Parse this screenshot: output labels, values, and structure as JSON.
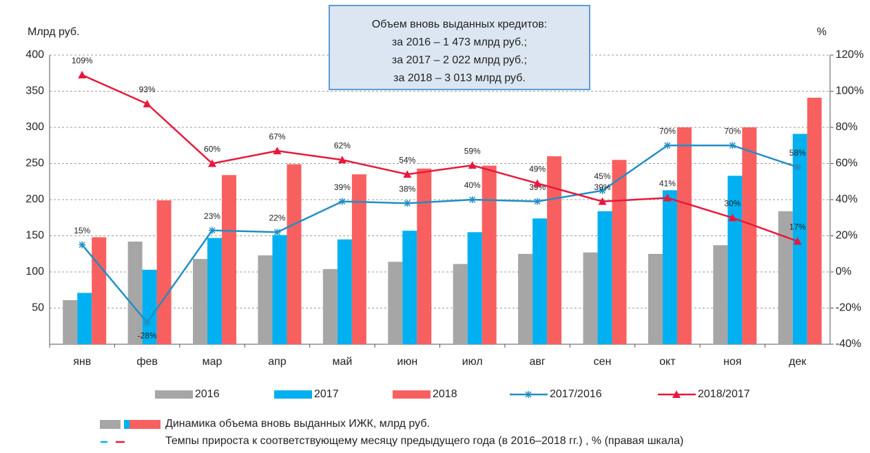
{
  "chart_data": {
    "type": "bar",
    "y_label": "Млрд руб.",
    "y2_label": "%",
    "annotation": [
      "Объем вновь выданных кредитов:",
      "за 2016 – 1 473 млрд руб.;",
      "за 2017 – 2 022 млрд руб.;",
      "за 2018 – 3 013 млрд руб."
    ],
    "categories": [
      "янв",
      "фев",
      "мар",
      "апр",
      "май",
      "июн",
      "июл",
      "авг",
      "сен",
      "окт",
      "ноя",
      "дек"
    ],
    "series": [
      {
        "name": "2016",
        "color": "#a6a6a6",
        "type": "bar",
        "values": [
          61,
          142,
          118,
          123,
          104,
          114,
          111,
          125,
          127,
          125,
          137,
          184
        ]
      },
      {
        "name": "2017",
        "color": "#00b0f0",
        "type": "bar",
        "values": [
          71,
          103,
          147,
          151,
          145,
          157,
          155,
          174,
          184,
          213,
          233,
          291
        ]
      },
      {
        "name": "2018",
        "color": "#f8605f",
        "type": "bar",
        "values": [
          148,
          199,
          234,
          249,
          235,
          243,
          247,
          260,
          255,
          300,
          300,
          341
        ]
      },
      {
        "name": "2017/2016",
        "color": "#1f8ec4",
        "type": "line",
        "marker": "star",
        "axis": "y2",
        "values": [
          15,
          -28,
          23,
          22,
          39,
          38,
          40,
          39,
          45,
          70,
          70,
          58
        ],
        "value_labels": [
          "15%",
          "-28%",
          "23%",
          "22%",
          "39%",
          "38%",
          "40%",
          "39%",
          "45%",
          "70%",
          "70%",
          "58%"
        ]
      },
      {
        "name": "2018/2017",
        "color": "#e8183c",
        "type": "line",
        "marker": "triangle",
        "axis": "y2",
        "values": [
          109,
          93,
          60,
          67,
          62,
          54,
          59,
          49,
          39,
          41,
          30,
          17
        ],
        "value_labels": [
          "109%",
          "93%",
          "60%",
          "67%",
          "62%",
          "54%",
          "59%",
          "49%",
          "39%",
          "41%",
          "30%",
          "17%"
        ]
      }
    ],
    "ylim": [
      0,
      400
    ],
    "yticks": [
      50,
      100,
      150,
      200,
      250,
      300,
      350,
      400
    ],
    "y2lim": [
      -40,
      120
    ],
    "y2ticks": [
      {
        "value": -40,
        "label": "-40%"
      },
      {
        "value": -20,
        "label": "-20%"
      },
      {
        "value": 0,
        "label": "0%"
      },
      {
        "value": 20,
        "label": "20%"
      },
      {
        "value": 40,
        "label": "40%"
      },
      {
        "value": 60,
        "label": "60%"
      },
      {
        "value": 80,
        "label": "80%"
      },
      {
        "value": 100,
        "label": "100%"
      },
      {
        "value": 120,
        "label": "120%"
      }
    ],
    "grid": true,
    "notes": [
      "Динамика объема вновь выданных ИЖК, млрд руб.",
      "Темпы прироста к соответствующему месяцу предыдущего года (в 2016–2018 гг.) , % (правая шкала)"
    ]
  }
}
